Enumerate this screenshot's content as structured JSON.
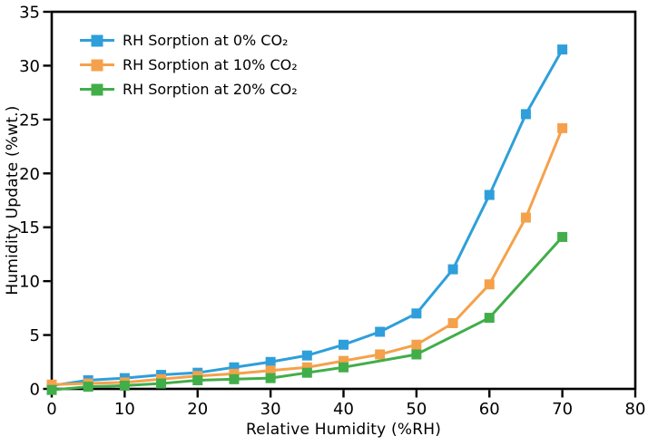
{
  "figure": {
    "background": "#ffffff",
    "axis_color": "#000000"
  },
  "chart_data": {
    "type": "line",
    "title": "",
    "xlabel": "Relative Humidity (%RH)",
    "ylabel": "Humidity Update (%wt.)",
    "xlim": [
      0,
      80
    ],
    "ylim": [
      0,
      35
    ],
    "xticks": [
      0,
      10,
      20,
      30,
      40,
      50,
      60,
      70,
      80
    ],
    "yticks": [
      0,
      5,
      10,
      15,
      20,
      25,
      30,
      35
    ],
    "grid": false,
    "legend_position": "top-left-inside",
    "marker": "square",
    "series": [
      {
        "name": "RH Sorption at 0% CO₂",
        "color": "#2E9FDA",
        "x": [
          0,
          5,
          10,
          15,
          20,
          25,
          30,
          35,
          40,
          45,
          50,
          55,
          60,
          65,
          70
        ],
        "y": [
          0.3,
          0.8,
          1.0,
          1.3,
          1.5,
          2.0,
          2.5,
          3.1,
          4.1,
          5.3,
          7.0,
          11.1,
          18.0,
          25.5,
          31.5
        ]
      },
      {
        "name": "RH Sorption at 10% CO₂",
        "color": "#F5A14B",
        "x": [
          0,
          5,
          10,
          15,
          20,
          25,
          30,
          35,
          40,
          45,
          50,
          55,
          60,
          65,
          70
        ],
        "y": [
          0.4,
          0.5,
          0.6,
          0.9,
          1.2,
          1.4,
          1.7,
          2.0,
          2.6,
          3.2,
          4.1,
          6.1,
          9.7,
          15.9,
          24.2
        ]
      },
      {
        "name": "RH Sorption at 20% CO₂",
        "color": "#41AE49",
        "x": [
          0,
          5,
          10,
          15,
          20,
          25,
          30,
          35,
          40,
          50,
          60,
          70
        ],
        "y": [
          -0.1,
          0.2,
          0.3,
          0.5,
          0.8,
          0.9,
          1.0,
          1.5,
          2.0,
          3.2,
          6.6,
          14.1
        ]
      }
    ]
  }
}
